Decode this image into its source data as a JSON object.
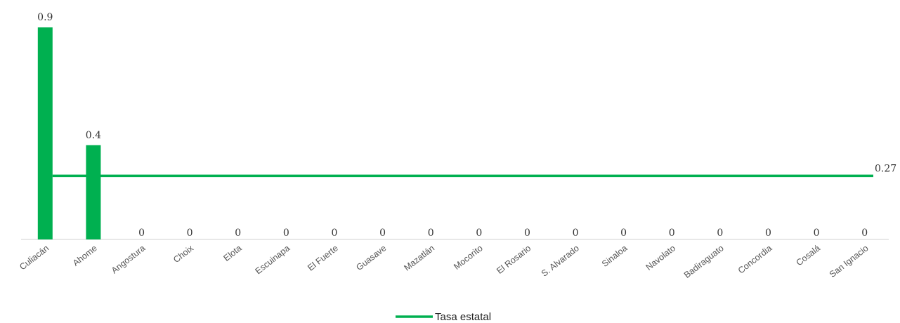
{
  "colors": {
    "bar": "#00b050",
    "line": "#00b050",
    "axis": "#d0d0d0",
    "text": "#333333"
  },
  "chart_data": {
    "type": "bar",
    "title": "",
    "xlabel": "",
    "ylabel": "",
    "ylim": [
      0,
      0.9
    ],
    "grid": false,
    "legend_position": "bottom-center",
    "categories": [
      "Culiacán",
      "Ahome",
      "Angostura",
      "Choix",
      "Elota",
      "Escuinapa",
      "El Fuerte",
      "Guasave",
      "Mazatlán",
      "Mocorito",
      "El Rosario",
      "S. Alvarado",
      "Sinaloa",
      "Navolato",
      "Badiraguato",
      "Concordia",
      "Cosalá",
      "San Ignacio"
    ],
    "series": [
      {
        "values": [
          0.9,
          0.4,
          0,
          0,
          0,
          0,
          0,
          0,
          0,
          0,
          0,
          0,
          0,
          0,
          0,
          0,
          0,
          0
        ],
        "data_labels": [
          "0.9",
          "0.4",
          "0",
          "0",
          "0",
          "0",
          "0",
          "0",
          "0",
          "0",
          "0",
          "0",
          "0",
          "0",
          "0",
          "0",
          "0",
          "0"
        ]
      }
    ],
    "reference_line": {
      "name": "Tasa estatal",
      "value": 0.27,
      "label": "0.27"
    }
  }
}
